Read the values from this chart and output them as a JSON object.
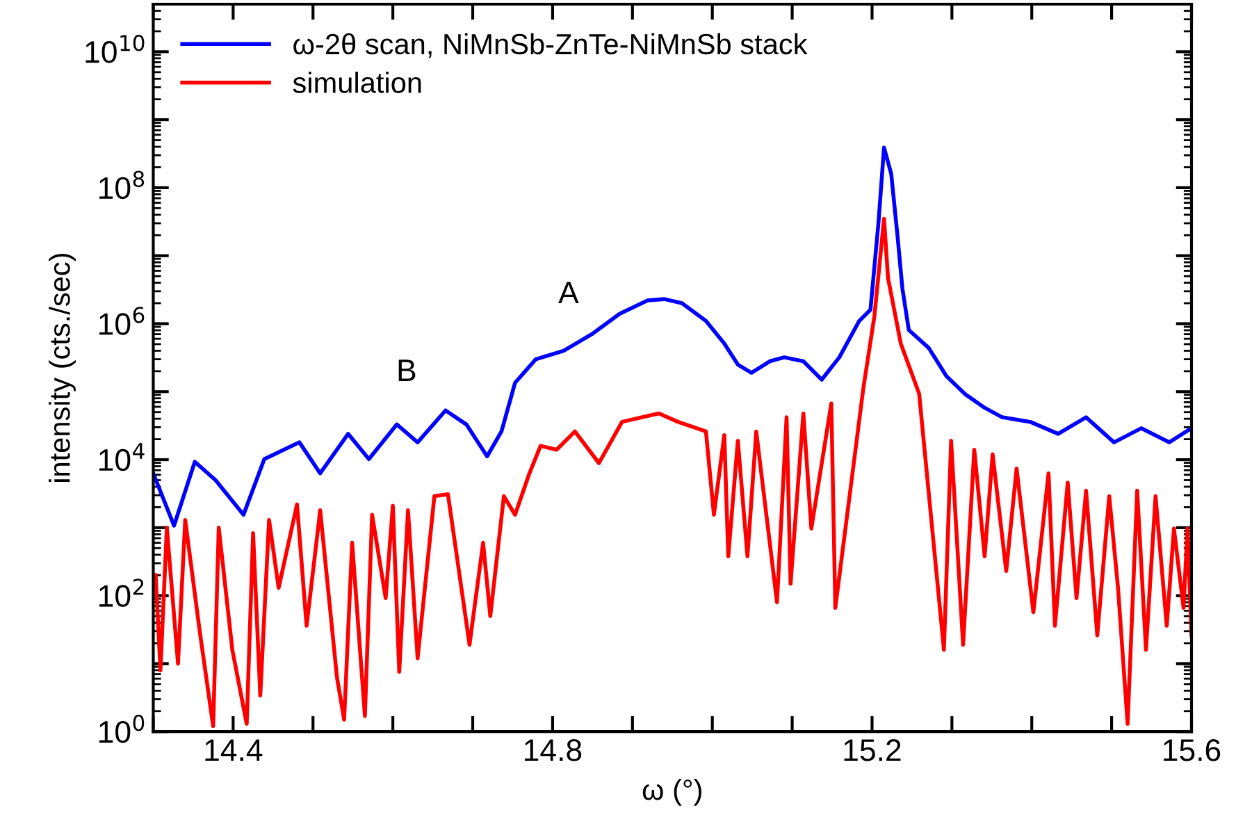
{
  "chart_data": {
    "type": "line",
    "xlabel": "ω (°)",
    "ylabel": "intensity (cts./sec)",
    "xlim": [
      14.3,
      15.6
    ],
    "xticks": [
      {
        "value": 14.3,
        "label": null
      },
      14.4,
      {
        "value": 14.5,
        "label": null
      },
      {
        "value": 14.6,
        "label": null
      },
      {
        "value": 14.7,
        "label": null
      },
      14.8,
      {
        "value": 14.9,
        "label": null
      },
      {
        "value": 15.0,
        "label": null
      },
      {
        "value": 15.1,
        "label": null
      },
      15.2,
      {
        "value": 15.3,
        "label": null
      },
      {
        "value": 15.4,
        "label": null
      },
      {
        "value": 15.5,
        "label": null
      },
      15.6
    ],
    "ylim": [
      1,
      50000000000.0
    ],
    "log": "y",
    "yticks": [
      {
        "value": 1,
        "label": "10$^{0}$"
      },
      {
        "value": 10,
        "label": null
      },
      {
        "value": 100,
        "label": "10$^{2}$"
      },
      {
        "value": 1000,
        "label": null
      },
      {
        "value": 10000,
        "label": "10$^{4}$"
      },
      {
        "value": 100000,
        "label": null
      },
      {
        "value": 1000000,
        "label": "10$^{6}$"
      },
      {
        "value": 10000000,
        "label": null
      },
      {
        "value": 100000000,
        "label": "10$^{8}$"
      },
      {
        "value": 1000000000,
        "label": null
      },
      {
        "value": 10000000000,
        "label": "10$^{10}$"
      }
    ],
    "grid": false,
    "legend": "top left",
    "line_style": "solid",
    "marker": "none",
    "annotations": [
      "A",
      "B"
    ],
    "series": [
      {
        "name": "ω-2θ scan, NiMnSb-ZnTe-NiMnSb stack",
        "color": "#0000ff",
        "x": [
          14.3,
          14.326,
          14.352,
          14.378,
          14.413,
          14.439,
          14.483,
          14.509,
          14.544,
          14.57,
          14.605,
          14.631,
          14.666,
          14.692,
          14.718,
          14.736,
          14.753,
          14.779,
          14.814,
          14.849,
          14.884,
          14.919,
          14.94,
          14.962,
          14.992,
          15.015,
          15.032,
          15.049,
          15.072,
          15.09,
          15.114,
          15.137,
          15.159,
          15.184,
          15.198,
          15.208,
          15.215,
          15.224,
          15.232,
          15.238,
          15.246,
          15.271,
          15.293,
          15.316,
          15.341,
          15.363,
          15.398,
          15.433,
          15.468,
          15.503,
          15.537,
          15.572,
          15.6
        ],
        "values": [
          6300,
          1070,
          9300,
          5000,
          1550,
          10200,
          18000,
          6300,
          24000,
          10200,
          33000,
          18000,
          53000,
          33000,
          11200,
          26000,
          135000,
          300000,
          400000,
          700000,
          1400000,
          2200000,
          2300000,
          2000000,
          1100000,
          510000,
          250000,
          190000,
          280000,
          320000,
          280000,
          150000,
          320000,
          1100000,
          1600000,
          30000000,
          390000000,
          160000000,
          19000000,
          3300000,
          810000,
          440000,
          170000,
          93000,
          58000,
          42000,
          36000,
          24000,
          42000,
          18000,
          29000,
          18000,
          29000
        ]
      },
      {
        "name": "simulation",
        "color": "#ff0000",
        "x": [
          14.303,
          14.309,
          14.317,
          14.331,
          14.34,
          14.358,
          14.375,
          14.382,
          14.399,
          14.417,
          14.425,
          14.434,
          14.445,
          14.457,
          14.48,
          14.492,
          14.509,
          14.53,
          14.539,
          14.549,
          14.565,
          14.574,
          14.591,
          14.6,
          14.608,
          14.619,
          14.631,
          14.652,
          14.669,
          14.696,
          14.713,
          14.722,
          14.739,
          14.753,
          14.771,
          14.785,
          14.805,
          14.828,
          14.858,
          14.887,
          14.933,
          14.957,
          14.992,
          15.002,
          15.015,
          15.02,
          15.032,
          15.044,
          15.055,
          15.081,
          15.093,
          15.098,
          15.114,
          15.124,
          15.149,
          15.154,
          15.189,
          15.203,
          15.215,
          15.22,
          15.236,
          15.259,
          15.29,
          15.299,
          15.314,
          15.328,
          15.341,
          15.351,
          15.368,
          15.381,
          15.402,
          15.421,
          15.429,
          15.445,
          15.456,
          15.468,
          15.482,
          15.497,
          15.508,
          15.52,
          15.532,
          15.543,
          15.555,
          15.569,
          15.578,
          15.59,
          15.595,
          15.6
        ],
        "values": [
          200,
          8,
          1000,
          10,
          1300,
          31,
          1.2,
          1000,
          16,
          1.3,
          830,
          3.4,
          1300,
          130,
          2200,
          36,
          1800,
          6.3,
          1.5,
          600,
          1.7,
          1550,
          92,
          2100,
          7.6,
          1800,
          12,
          2900,
          3100,
          19,
          600,
          50,
          2900,
          1550,
          6300,
          16000,
          14000,
          26000,
          8900,
          36000,
          48000,
          36000,
          26000,
          1550,
          23000,
          380,
          19000,
          380,
          26000,
          80,
          42000,
          150,
          48000,
          970,
          67000,
          66,
          110000,
          1300000,
          35000000,
          4700000,
          510000,
          93000,
          16,
          19000,
          19,
          14000,
          380,
          12000,
          230,
          7400,
          57,
          6300,
          36,
          4600,
          92,
          3500,
          26,
          2900,
          130,
          1.3,
          3500,
          16,
          2900,
          36,
          970,
          66,
          970,
          26
        ]
      }
    ]
  }
}
